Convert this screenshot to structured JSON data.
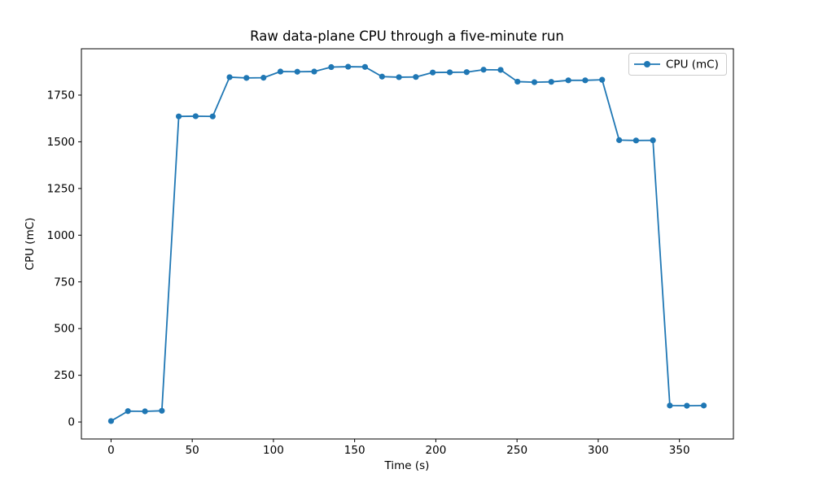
{
  "figure": {
    "background": "#ffffff"
  },
  "chart_data": {
    "type": "line",
    "title": "Raw data-plane CPU through a five-minute run",
    "xlabel": "Time (s)",
    "ylabel": "CPU (mC)",
    "legend": {
      "label": "CPU (mC)",
      "position": "upper right",
      "border_color": "#cccccc",
      "fill": "#ffffff"
    },
    "line_color": "#1f77b4",
    "marker": "circle",
    "grid": false,
    "xlim": [
      -18.25,
      383.25
    ],
    "ylim": [
      -91,
      1998
    ],
    "xticks": [
      0,
      50,
      100,
      150,
      200,
      250,
      300,
      350
    ],
    "yticks": [
      0,
      250,
      500,
      750,
      1000,
      1250,
      1500,
      1750
    ],
    "x": [
      0,
      10.4,
      20.9,
      31.3,
      41.7,
      52.1,
      62.6,
      73.0,
      83.4,
      93.9,
      104.3,
      114.7,
      125.1,
      135.6,
      146.0,
      156.4,
      166.9,
      177.3,
      187.7,
      198.1,
      208.6,
      219.0,
      229.4,
      239.9,
      250.3,
      260.7,
      271.1,
      281.6,
      292.0,
      302.4,
      312.9,
      323.3,
      333.7,
      344.1,
      354.6,
      365.0
    ],
    "series": [
      {
        "name": "CPU (mC)",
        "values": [
          5,
          58,
          57,
          60,
          1636,
          1637,
          1636,
          1846,
          1842,
          1843,
          1876,
          1875,
          1876,
          1900,
          1902,
          1901,
          1849,
          1846,
          1847,
          1871,
          1872,
          1873,
          1886,
          1885,
          1822,
          1819,
          1821,
          1829,
          1829,
          1832,
          1509,
          1507,
          1508,
          88,
          87,
          88
        ]
      }
    ]
  }
}
